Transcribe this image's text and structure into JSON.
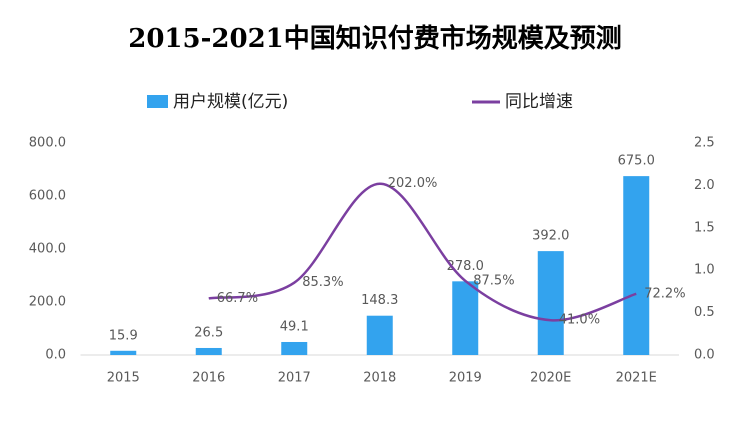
{
  "chart_data": {
    "type": "bar-line",
    "title": "2015-2021中国知识付费市场规模及预测",
    "categories": [
      "2015",
      "2016",
      "2017",
      "2018",
      "2019",
      "2020E",
      "2021E"
    ],
    "series": [
      {
        "name": "用户规模(亿元)",
        "type": "bar",
        "color": "#33a3ee",
        "values": [
          15.9,
          26.5,
          49.1,
          148.3,
          278.0,
          392.0,
          675.0
        ],
        "value_labels": [
          "15.9",
          "26.5",
          "49.1",
          "148.3",
          "278.0",
          "392.0",
          "675.0"
        ]
      },
      {
        "name": "同比增速",
        "type": "line",
        "axis": "y2",
        "color": "#7b3fa0",
        "values": [
          null,
          0.667,
          0.853,
          2.02,
          0.875,
          0.41,
          0.722
        ],
        "value_labels": [
          null,
          "66.7%",
          "85.3%",
          "202.0%",
          "87.5%",
          "41.0%",
          "72.2%"
        ]
      }
    ],
    "ylim": [
      0,
      800
    ],
    "yticks": [
      {
        "value": 0,
        "label": "0.0"
      },
      {
        "value": 200,
        "label": "200.0"
      },
      {
        "value": 400,
        "label": "400.0"
      },
      {
        "value": 600,
        "label": "600.0"
      },
      {
        "value": 800,
        "label": "800.0"
      }
    ],
    "y2lim": [
      0,
      2.5
    ],
    "y2ticks": [
      {
        "value": 0,
        "label": "0.0"
      },
      0.5,
      {
        "value": 1,
        "label": "1.0"
      },
      1.5,
      {
        "value": 2,
        "label": "2.0"
      },
      2.5
    ],
    "grid": false,
    "legend": "top"
  }
}
